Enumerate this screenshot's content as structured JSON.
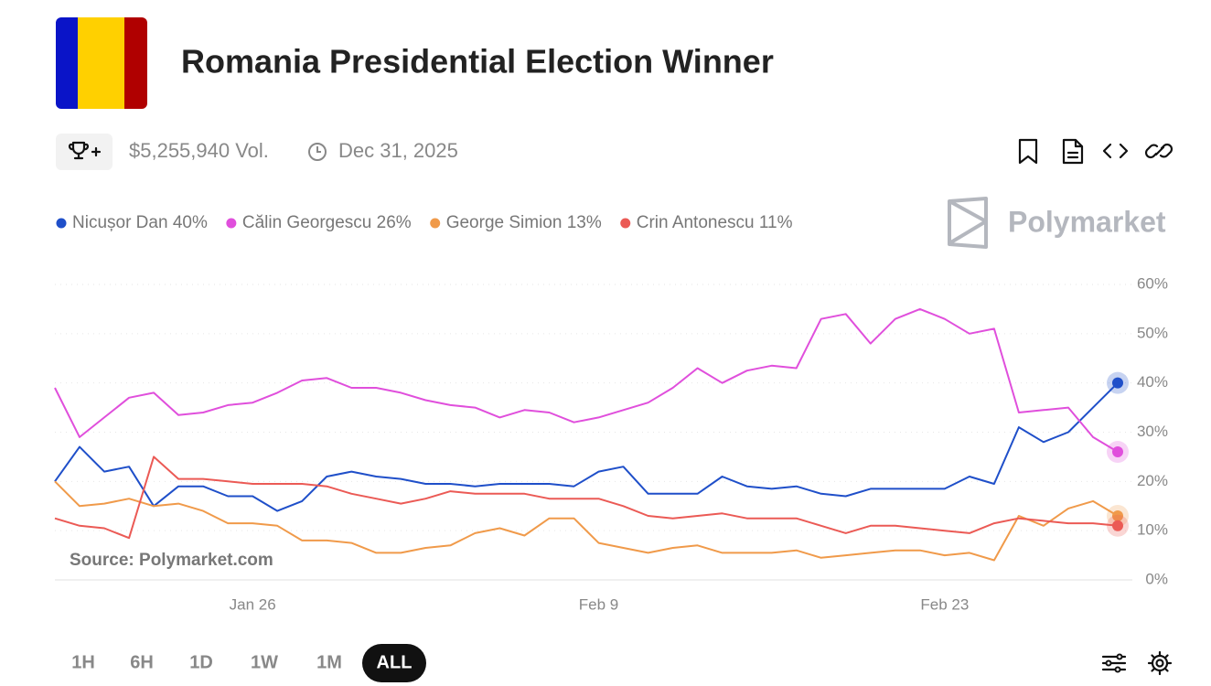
{
  "header": {
    "title": "Romania Presidential Election Winner",
    "volume": "$5,255,940 Vol.",
    "date": "Dec 31, 2025"
  },
  "brand": "Polymarket",
  "time_ranges": [
    "1H",
    "6H",
    "1D",
    "1W",
    "1M",
    "ALL"
  ],
  "chart_data": {
    "type": "line",
    "annotation": "Source: Polymarket.com",
    "x": [
      "Jan 18",
      "Jan 19",
      "Jan 20",
      "Jan 21",
      "Jan 22",
      "Jan 23",
      "Jan 24",
      "Jan 25",
      "Jan 26",
      "Jan 27",
      "Jan 28",
      "Jan 29",
      "Jan 30",
      "Jan 31",
      "Feb 1",
      "Feb 2",
      "Feb 3",
      "Feb 4",
      "Feb 5",
      "Feb 6",
      "Feb 7",
      "Feb 8",
      "Feb 9",
      "Feb 10",
      "Feb 11",
      "Feb 12",
      "Feb 13",
      "Feb 14",
      "Feb 15",
      "Feb 16",
      "Feb 17",
      "Feb 18",
      "Feb 19",
      "Feb 20",
      "Feb 21",
      "Feb 22",
      "Feb 23",
      "Feb 24",
      "Feb 25",
      "Feb 26",
      "Feb 27",
      "Feb 28",
      "Mar 1",
      "Mar 2"
    ],
    "xticks": [
      "Jan 26",
      "Feb 9",
      "Feb 23"
    ],
    "ylim": [
      0,
      60
    ],
    "yticks": [
      {
        "value": 0,
        "label": "0%"
      },
      {
        "value": 10,
        "label": "10%"
      },
      {
        "value": 20,
        "label": "20%"
      },
      {
        "value": 30,
        "label": "30%"
      },
      {
        "value": 40,
        "label": "40%"
      },
      {
        "value": 50,
        "label": "50%"
      },
      {
        "value": 60,
        "label": "60%"
      }
    ],
    "grid": true,
    "series": [
      {
        "name": "Nicușor Dan",
        "color": "#1f4fc9",
        "legend_value": {
          "value": 40,
          "label": "40%"
        },
        "values": [
          20,
          27,
          22,
          23,
          15,
          19,
          19,
          17,
          17,
          14,
          16,
          21,
          22,
          21,
          20.5,
          19.5,
          19.5,
          19,
          19.5,
          19.5,
          19.5,
          19,
          22,
          23,
          17.5,
          17.5,
          17.5,
          21,
          19,
          18.5,
          19,
          17.5,
          17,
          18.5,
          18.5,
          18.5,
          18.5,
          21,
          19.5,
          31,
          28,
          30,
          35,
          40
        ]
      },
      {
        "name": "Călin Georgescu",
        "color": "#e04fdc",
        "legend_value": {
          "value": 26,
          "label": "26%"
        },
        "values": [
          39,
          29,
          33,
          37,
          38,
          33.5,
          34,
          35.5,
          36,
          38,
          40.5,
          41,
          39,
          39,
          38,
          36.5,
          35.5,
          35,
          33,
          34.5,
          34,
          32,
          33,
          34.5,
          36,
          39,
          43,
          40,
          42.5,
          43.5,
          43,
          53,
          54,
          48,
          53,
          55,
          53,
          50,
          51,
          34,
          34.5,
          35,
          29,
          26
        ]
      },
      {
        "name": "George Simion",
        "color": "#f09a4a",
        "legend_value": {
          "value": 13,
          "label": "13%"
        },
        "values": [
          20,
          15,
          15.5,
          16.5,
          15,
          15.5,
          14,
          11.5,
          11.5,
          11,
          8,
          8,
          7.5,
          5.5,
          5.5,
          6.5,
          7,
          9.5,
          10.5,
          9,
          12.5,
          12.5,
          7.5,
          6.5,
          5.5,
          6.5,
          7,
          5.5,
          5.5,
          5.5,
          6,
          4.5,
          5,
          5.5,
          6,
          6,
          5,
          5.5,
          4,
          13,
          11,
          14.5,
          16,
          13
        ]
      },
      {
        "name": "Crin Antonescu",
        "color": "#eb5a55",
        "legend_value": {
          "value": 11,
          "label": "11%"
        },
        "values": [
          12.5,
          11,
          10.5,
          8.5,
          25,
          20.5,
          20.5,
          20,
          19.5,
          19.5,
          19.5,
          19,
          17.5,
          16.5,
          15.5,
          16.5,
          18,
          17.5,
          17.5,
          17.5,
          16.5,
          16.5,
          16.5,
          15,
          13,
          12.5,
          13,
          13.5,
          12.5,
          12.5,
          12.5,
          11,
          9.5,
          11,
          11,
          10.5,
          10,
          9.5,
          11.5,
          12.5,
          12,
          11.5,
          11.5,
          11
        ]
      }
    ]
  }
}
